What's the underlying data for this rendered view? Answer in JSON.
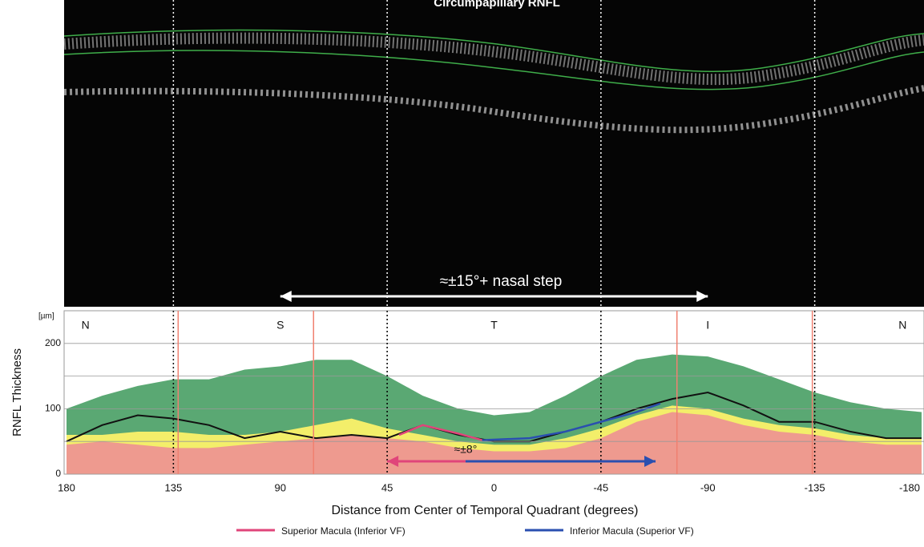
{
  "chart_data": {
    "type": "line",
    "title": "Circumpapillary RNFL",
    "x_label": "Distance from Center of Temporal Quadrant (degrees)",
    "y_label": "RNFL Thickness",
    "y_unit": "[µm]",
    "xlim": [
      180,
      -180
    ],
    "ylim": [
      0,
      250
    ],
    "xticks": [
      180,
      135,
      90,
      45,
      0,
      -45,
      -90,
      -135,
      -180
    ],
    "yticks": [
      0,
      100,
      200
    ],
    "minor_yticks": [
      50,
      150
    ],
    "grid": true,
    "quadrants": [
      {
        "label": "N",
        "x": 172
      },
      {
        "label": "S",
        "x": 90
      },
      {
        "label": "T",
        "x": 0
      },
      {
        "label": "I",
        "x": -90
      },
      {
        "label": "N",
        "x": -172
      }
    ],
    "dotted_lines": [
      135,
      45,
      -45,
      -135
    ],
    "red_lines": [
      133,
      76,
      -77,
      -134
    ],
    "x": [
      180,
      165,
      150,
      135,
      120,
      105,
      90,
      75,
      60,
      45,
      30,
      15,
      0,
      -15,
      -30,
      -45,
      -60,
      -75,
      -90,
      -105,
      -120,
      -135,
      -150,
      -165,
      -180
    ],
    "bands": [
      {
        "color": "#5aa873",
        "values": [
          100,
          120,
          135,
          145,
          145,
          160,
          165,
          175,
          175,
          150,
          120,
          100,
          90,
          95,
          120,
          150,
          175,
          183,
          180,
          165,
          145,
          125,
          110,
          100,
          95
        ]
      },
      {
        "color": "#f3ee6a",
        "values": [
          60,
          60,
          65,
          65,
          60,
          60,
          65,
          75,
          85,
          70,
          60,
          50,
          45,
          45,
          55,
          70,
          90,
          105,
          100,
          85,
          75,
          70,
          60,
          55,
          55
        ]
      },
      {
        "color": "#ee9a8f",
        "values": [
          45,
          50,
          45,
          40,
          40,
          45,
          50,
          55,
          60,
          55,
          50,
          40,
          35,
          35,
          40,
          55,
          80,
          95,
          90,
          75,
          65,
          60,
          50,
          45,
          45
        ]
      }
    ],
    "patient": {
      "color": "#111111",
      "values": [
        50,
        75,
        90,
        85,
        75,
        55,
        65,
        55,
        60,
        55,
        75,
        60,
        50,
        50,
        65,
        80,
        100,
        115,
        125,
        105,
        80,
        80,
        65,
        55,
        55
      ]
    },
    "series": [
      {
        "name": "Superior Macula (Inferior VF)",
        "color": "#e0457a",
        "x": [
          40,
          30,
          15,
          5
        ],
        "values": [
          60,
          75,
          62,
          52
        ]
      },
      {
        "name": "Inferior Macula (Superior VF)",
        "color": "#2a4fb0",
        "x": [
          5,
          -15,
          -30,
          -45,
          -60,
          -70
        ],
        "values": [
          52,
          55,
          65,
          80,
          95,
          108
        ]
      }
    ],
    "annotations": [
      {
        "text": "≈±15°+ nasal step",
        "from": 90,
        "to": -90,
        "color": "#ffffff"
      },
      {
        "text": "≈±8°",
        "from": 45,
        "to": 12,
        "to2": -68,
        "color": "#e0457a",
        "color2": "#2a4fb0"
      }
    ]
  }
}
